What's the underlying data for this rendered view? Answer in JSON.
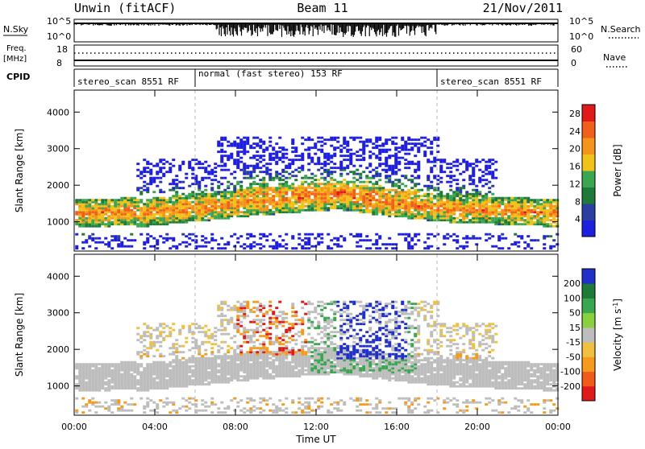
{
  "header": {
    "station": "Unwin (fitACF)",
    "beam": "Beam 11",
    "date": "21/Nov/2011"
  },
  "strips": {
    "nsky_label": "N.Sky",
    "nsearch_label": "N.Search",
    "nsky_ticks": [
      "10^5",
      "10^0"
    ],
    "freq_label_line1": "Freq.",
    "freq_label_line2": "[MHz]",
    "freq_ticks": [
      "18",
      "8"
    ],
    "nave_label": "Nave",
    "nave_ticks": [
      "60",
      "0"
    ],
    "cpid_label": "CPID",
    "cpid_segments": [
      {
        "start_hour": 0,
        "end_hour": 6,
        "label": "stereo_scan 8551 RF"
      },
      {
        "start_hour": 6,
        "end_hour": 18,
        "label": "normal (fast stereo) 153 RF"
      },
      {
        "start_hour": 18,
        "end_hour": 24,
        "label": "stereo_scan 8551 RF"
      }
    ]
  },
  "colors": {
    "power_scale": [
      "#1f1fe0",
      "#2a3fa0",
      "#1f7a3a",
      "#3aa64f",
      "#f0c21a",
      "#f5941a",
      "#f0601a",
      "#e01a1a"
    ],
    "velocity_scale": [
      "#e01a1a",
      "#f05a1a",
      "#f59a1a",
      "#f0c040",
      "#bdbdbd",
      "#8ad13f",
      "#3aa64f",
      "#1f7a3a",
      "#2030c8"
    ],
    "ground_scatter": "#bdbdbd"
  },
  "chart_data": [
    {
      "type": "heatmap",
      "title": "",
      "xlabel": "Time UT",
      "ylabel": "Slant Range [km]",
      "xlim": [
        0,
        24
      ],
      "ylim": [
        200,
        4600
      ],
      "x_ticks": [
        "00:00",
        "04:00",
        "08:00",
        "12:00",
        "16:00",
        "20:00",
        "00:00"
      ],
      "y_ticks": [
        1000,
        2000,
        3000,
        4000
      ],
      "colorbar": {
        "label": "Power [dB]",
        "ticks": [
          4,
          8,
          12,
          16,
          20,
          24,
          28
        ],
        "range": [
          0,
          30
        ]
      },
      "grid": false
    },
    {
      "type": "heatmap",
      "title": "",
      "xlabel": "Time UT",
      "ylabel": "Slant Range [km]",
      "xlim": [
        0,
        24
      ],
      "ylim": [
        200,
        4600
      ],
      "x_ticks": [
        "00:00",
        "04:00",
        "08:00",
        "12:00",
        "16:00",
        "20:00",
        "00:00"
      ],
      "y_ticks": [
        1000,
        2000,
        3000,
        4000
      ],
      "colorbar": {
        "label": "Velocity [m s^-1]",
        "ticks": [
          200,
          100,
          50,
          15,
          -15,
          -50,
          -100,
          -200
        ],
        "range": [
          -250,
          250
        ]
      },
      "grid": false
    }
  ]
}
